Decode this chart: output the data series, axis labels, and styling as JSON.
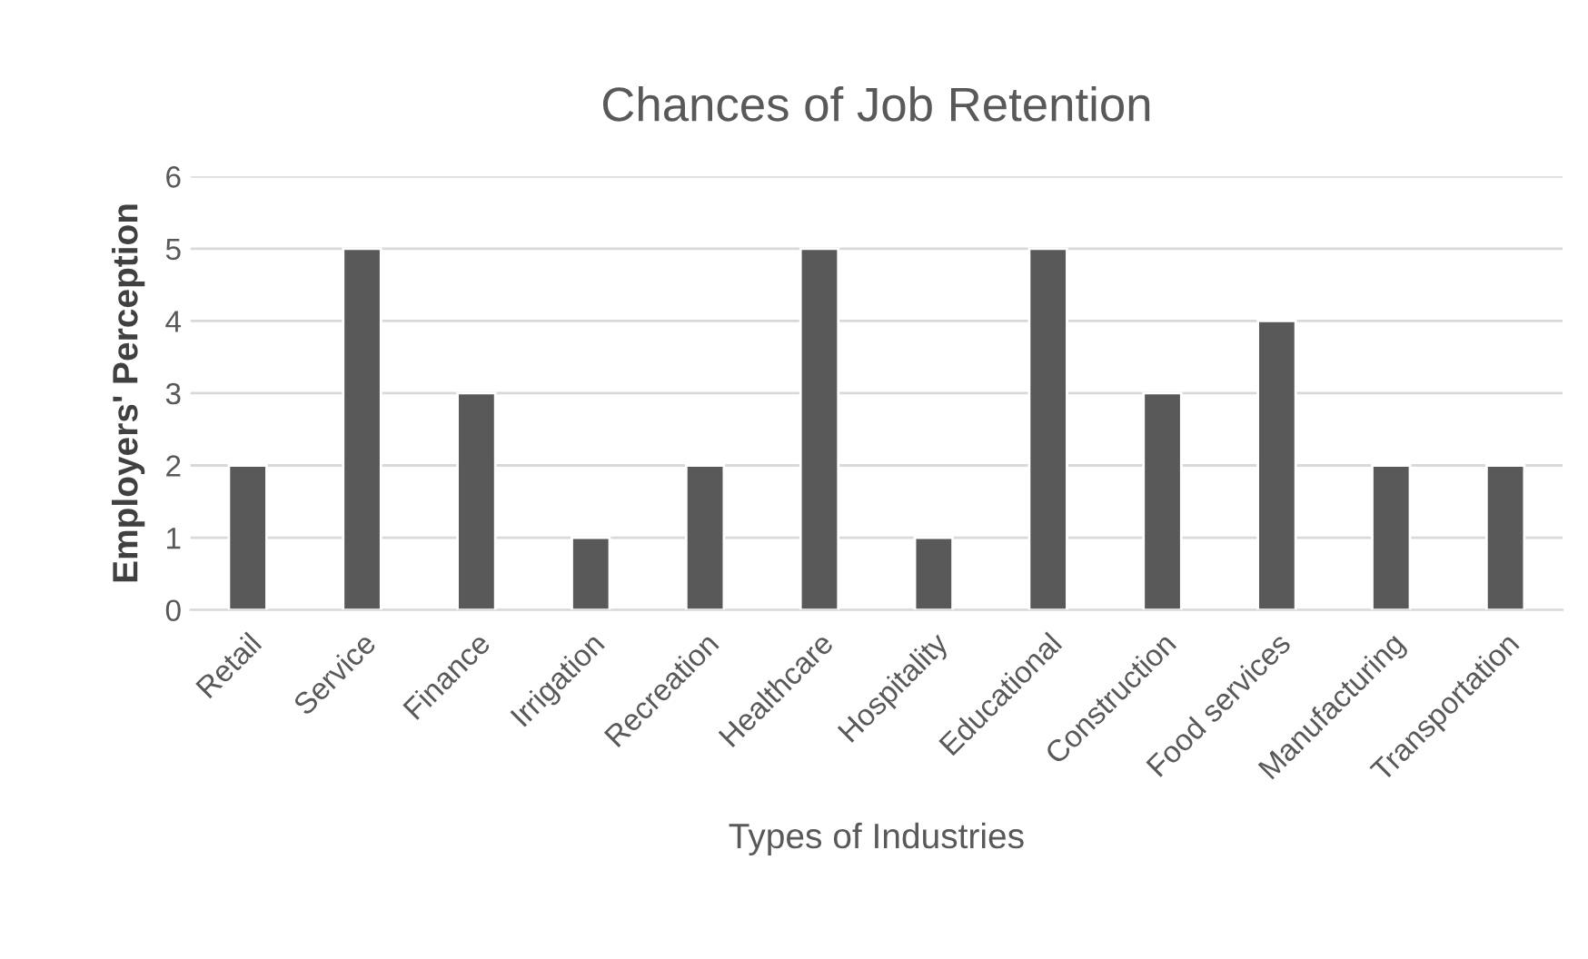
{
  "chart_data": {
    "type": "bar",
    "title": "Chances of Job Retention",
    "xlabel": "Types of Industries",
    "ylabel": "Employers' Perception",
    "categories": [
      "Retail",
      "Service",
      "Finance",
      "Irrigation",
      "Recreation",
      "Healthcare",
      "Hospitality",
      "Educational",
      "Construction",
      "Food services",
      "Manufacturing",
      "Transportation"
    ],
    "values": [
      2,
      5,
      3,
      1,
      2,
      5,
      1,
      5,
      3,
      4,
      2,
      2
    ],
    "color": "#595959",
    "ylim": [
      0,
      6
    ],
    "yticks": [
      0,
      1,
      2,
      3,
      4,
      5,
      6
    ],
    "grid": "y"
  }
}
